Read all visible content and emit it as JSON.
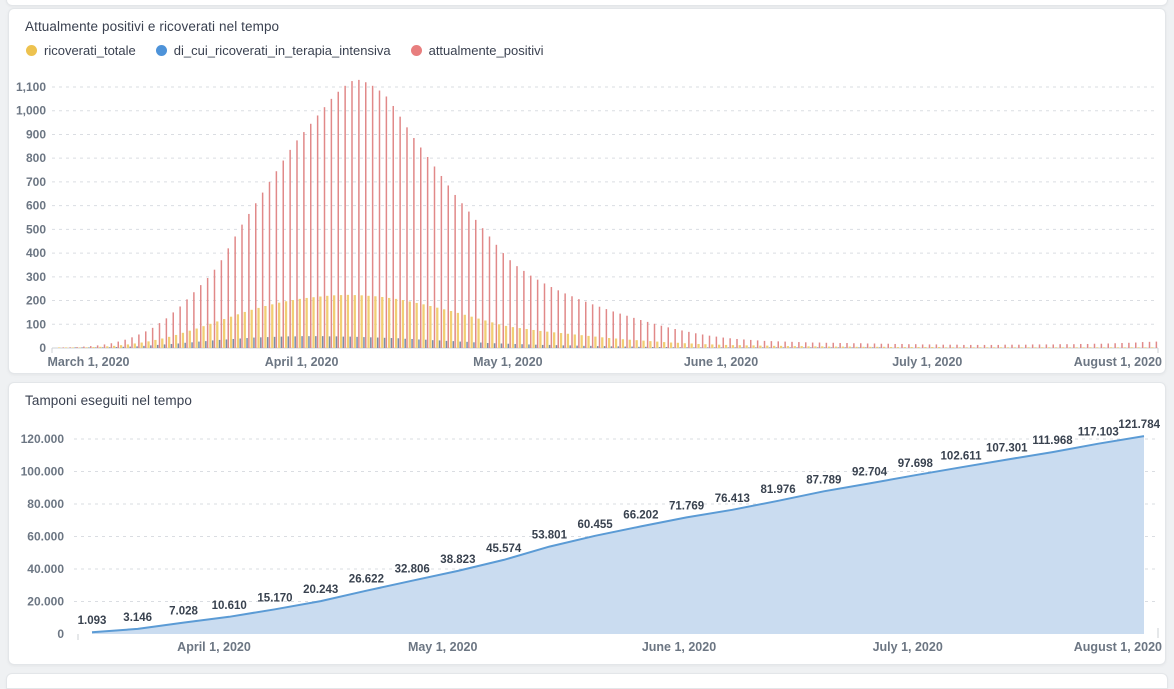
{
  "page_background": "#EFF1F3",
  "chart_data": [
    {
      "type": "bar",
      "title": "Attualmente positivi e ricoverati nel tempo",
      "legend": [
        {
          "label": "ricoverati_totale",
          "color": "#EDC24F"
        },
        {
          "label": "di_cui_ricoverati_in_terapia_intensiva",
          "color": "#4E93D9"
        },
        {
          "label": "attualmente_positivi",
          "color": "#E87E7E"
        }
      ],
      "ylim": [
        0,
        1160
      ],
      "grid": "dashed",
      "legend_position": "top",
      "y_ticks": [
        {
          "label": "0",
          "value": 0
        },
        {
          "label": "100",
          "value": 100
        },
        {
          "label": "200",
          "value": 200
        },
        {
          "label": "300",
          "value": 300
        },
        {
          "label": "400",
          "value": 400
        },
        {
          "label": "500",
          "value": 500
        },
        {
          "label": "600",
          "value": 600
        },
        {
          "label": "700",
          "value": 700
        },
        {
          "label": "800",
          "value": 800
        },
        {
          "label": "900",
          "value": 900
        },
        {
          "label": "1,000",
          "value": 1000
        },
        {
          "label": "1,100",
          "value": 1100
        }
      ],
      "total_days": 160,
      "x_ticks": [
        {
          "label": "March 1, 2020",
          "day": 4
        },
        {
          "label": "April 1, 2020",
          "day": 35
        },
        {
          "label": "May 1, 2020",
          "day": 65
        },
        {
          "label": "June 1, 2020",
          "day": 96
        },
        {
          "label": "July 1, 2020",
          "day": 126
        },
        {
          "label": "August 1, 2020",
          "day": 157
        }
      ],
      "series": [
        {
          "name": "ricoverati_totale",
          "color": "#F2CF74",
          "values": [
            1,
            1,
            2,
            2,
            3,
            4,
            5,
            7,
            9,
            12,
            15,
            19,
            23,
            28,
            34,
            40,
            47,
            55,
            64,
            73,
            82,
            92,
            102,
            112,
            122,
            132,
            142,
            152,
            161,
            169,
            177,
            184,
            191,
            197,
            202,
            207,
            211,
            214,
            217,
            220,
            222,
            223,
            224,
            223,
            222,
            220,
            218,
            215,
            211,
            207,
            202,
            196,
            190,
            184,
            177,
            170,
            163,
            156,
            148,
            140,
            132,
            124,
            116,
            108,
            100,
            93,
            88,
            84,
            80,
            76,
            72,
            69,
            66,
            63,
            60,
            57,
            54,
            51,
            48,
            45,
            42,
            40,
            37,
            35,
            33,
            31,
            29,
            27,
            25,
            23,
            22,
            20,
            19,
            17,
            16,
            15,
            14,
            13,
            12,
            12,
            11,
            11,
            10,
            10,
            9,
            9,
            8,
            8,
            8,
            7,
            7,
            7,
            6,
            6,
            6,
            6,
            5,
            5,
            5,
            5,
            5,
            4,
            4,
            4,
            4,
            4,
            4,
            4,
            4,
            3,
            3,
            3,
            3,
            3,
            3,
            3,
            3,
            3,
            3,
            3,
            3,
            3,
            3,
            3,
            3,
            3,
            3,
            3,
            3,
            3,
            3,
            3,
            3,
            3,
            3,
            3,
            3,
            3,
            3,
            3
          ]
        },
        {
          "name": "di_cui_ricoverati_in_terapia_intensiva",
          "color": "#7A8FA8",
          "values": [
            0,
            0,
            1,
            1,
            1,
            2,
            2,
            3,
            4,
            5,
            6,
            7,
            9,
            11,
            13,
            15,
            17,
            19,
            22,
            24,
            27,
            29,
            32,
            34,
            36,
            38,
            40,
            42,
            44,
            45,
            46,
            47,
            48,
            49,
            49,
            50,
            50,
            50,
            50,
            49,
            49,
            48,
            48,
            47,
            46,
            45,
            44,
            43,
            42,
            41,
            39,
            38,
            36,
            35,
            33,
            32,
            30,
            29,
            27,
            26,
            24,
            23,
            21,
            20,
            19,
            18,
            17,
            16,
            15,
            14,
            13,
            13,
            12,
            11,
            11,
            10,
            9,
            9,
            8,
            8,
            7,
            7,
            6,
            6,
            5,
            5,
            4,
            4,
            4,
            3,
            3,
            3,
            2,
            2,
            2,
            2,
            2,
            2,
            1,
            1,
            1,
            1,
            1,
            1,
            1,
            1,
            1,
            1,
            1,
            1,
            1,
            1,
            1,
            1,
            1,
            1,
            1,
            1,
            1,
            1,
            0,
            0,
            0,
            0,
            0,
            0,
            0,
            0,
            0,
            0,
            0,
            0,
            0,
            0,
            0,
            0,
            0,
            0,
            0,
            0,
            0,
            0,
            0,
            0,
            0,
            0,
            0,
            0,
            0,
            0,
            0,
            0,
            0,
            0,
            0,
            0,
            0,
            0,
            0,
            0
          ]
        },
        {
          "name": "attualmente_positivi",
          "color": "#E18989",
          "values": [
            2,
            3,
            4,
            6,
            8,
            11,
            15,
            20,
            27,
            35,
            45,
            57,
            70,
            85,
            105,
            125,
            150,
            175,
            205,
            235,
            265,
            295,
            330,
            370,
            420,
            470,
            520,
            565,
            610,
            655,
            700,
            745,
            790,
            835,
            875,
            910,
            945,
            980,
            1015,
            1050,
            1080,
            1105,
            1125,
            1130,
            1120,
            1105,
            1085,
            1060,
            1020,
            975,
            930,
            885,
            845,
            805,
            765,
            725,
            685,
            645,
            610,
            575,
            540,
            505,
            470,
            435,
            400,
            370,
            345,
            325,
            305,
            288,
            272,
            257,
            243,
            230,
            218,
            206,
            195,
            184,
            174,
            164,
            154,
            145,
            136,
            127,
            118,
            110,
            102,
            94,
            87,
            80,
            74,
            68,
            62,
            57,
            52,
            48,
            44,
            41,
            38,
            36,
            34,
            32,
            30,
            29,
            28,
            27,
            26,
            25,
            24,
            23,
            23,
            22,
            22,
            21,
            21,
            20,
            20,
            19,
            19,
            18,
            18,
            17,
            17,
            16,
            16,
            15,
            15,
            15,
            14,
            14,
            14,
            13,
            13,
            13,
            13,
            13,
            13,
            14,
            14,
            14,
            14,
            15,
            15,
            15,
            15,
            16,
            16,
            16,
            17,
            17,
            18,
            18,
            19,
            20,
            21,
            22,
            23,
            25,
            26,
            27
          ]
        }
      ]
    },
    {
      "type": "area",
      "title": "Tamponi eseguiti nel tempo",
      "line_color": "#5B9BD5",
      "fill_color": "#CADCF0",
      "ylim": [
        0,
        130000
      ],
      "grid": "dashed",
      "values": [
        1093,
        3146,
        7028,
        10610,
        15170,
        20243,
        26622,
        32806,
        38823,
        45574,
        53801,
        60455,
        66202,
        71769,
        76413,
        81976,
        87789,
        92704,
        97698,
        102611,
        107301,
        111968,
        117103,
        121784
      ],
      "point_labels": [
        "1.093",
        "3.146",
        "7.028",
        "10.610",
        "15.170",
        "20.243",
        "26.622",
        "32.806",
        "38.823",
        "45.574",
        "53.801",
        "60.455",
        "66.202",
        "71.769",
        "76.413",
        "81.976",
        "87.789",
        "92.704",
        "97.698",
        "102.611",
        "107.301",
        "111.968",
        "117.103",
        "121.784"
      ],
      "y_ticks": [
        {
          "label": "0",
          "value": 0
        },
        {
          "label": "20.000",
          "value": 20000
        },
        {
          "label": "40.000",
          "value": 40000
        },
        {
          "label": "60.000",
          "value": 60000
        },
        {
          "label": "80.000",
          "value": 80000
        },
        {
          "label": "100.000",
          "value": 100000
        },
        {
          "label": "120.000",
          "value": 120000
        }
      ],
      "total_days": 138,
      "x_ticks": [
        {
          "label": "April 1, 2020",
          "day": 16
        },
        {
          "label": "May 1, 2020",
          "day": 46
        },
        {
          "label": "June 1, 2020",
          "day": 77
        },
        {
          "label": "July 1, 2020",
          "day": 107
        },
        {
          "label": "August 1, 2020",
          "day": 138
        }
      ]
    }
  ],
  "theme": {
    "grid_color": "#DADDE2",
    "axis_color": "#CDD1D6",
    "tick_text_color": "#6C7683",
    "title_color": "#3A4150",
    "card_background": "#FFFFFF"
  }
}
